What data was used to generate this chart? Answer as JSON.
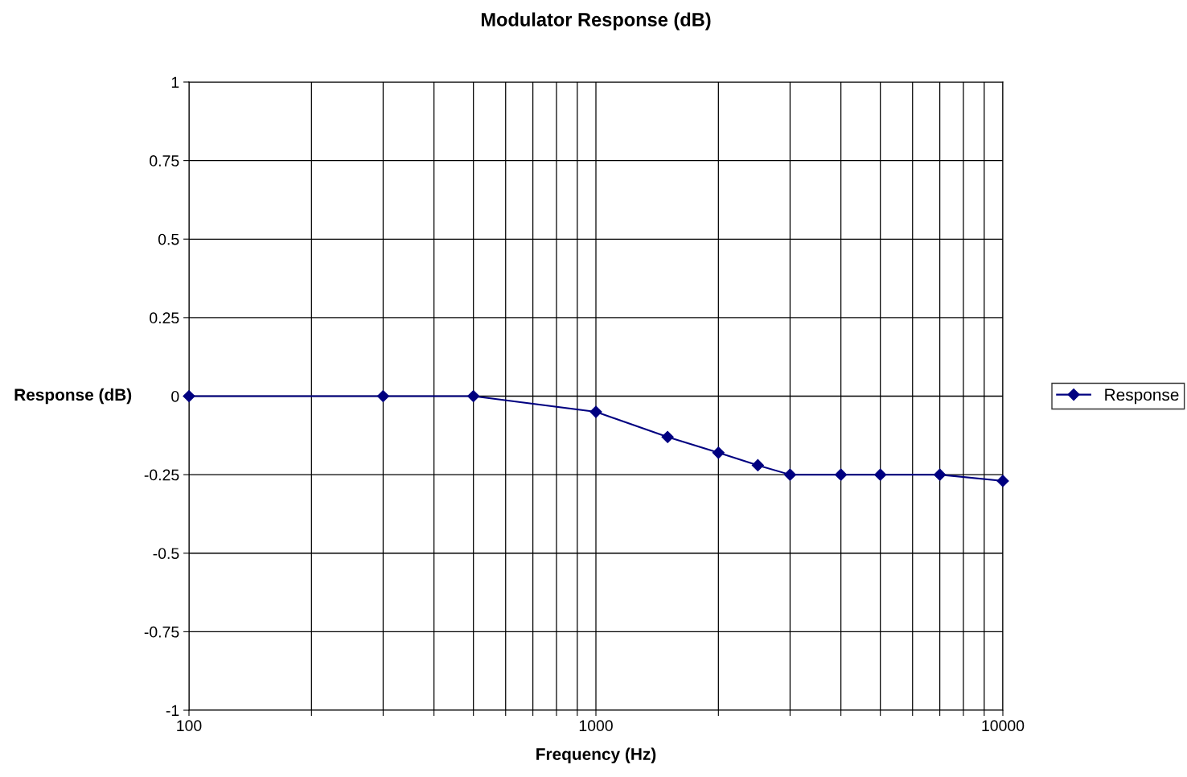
{
  "chart_data": {
    "type": "line",
    "title": "Modulator Response (dB)",
    "xlabel": "Frequency (Hz)",
    "ylabel": "Response (dB)",
    "log": "x",
    "x": [
      100,
      300,
      500,
      1000,
      1500,
      2000,
      2500,
      3000,
      4000,
      5000,
      7000,
      10000
    ],
    "series": [
      {
        "name": "Response",
        "color": "#000080",
        "values": [
          0,
          0,
          0,
          -0.05,
          -0.13,
          -0.18,
          -0.22,
          -0.25,
          -0.25,
          -0.25,
          -0.25,
          -0.27
        ]
      }
    ],
    "xlim": [
      100,
      10000
    ],
    "xticks": [
      100,
      {
        "value": 200,
        "label": null
      },
      {
        "value": 300,
        "label": null
      },
      {
        "value": 400,
        "label": null
      },
      {
        "value": 500,
        "label": null
      },
      {
        "value": 600,
        "label": null
      },
      {
        "value": 700,
        "label": null
      },
      {
        "value": 800,
        "label": null
      },
      {
        "value": 900,
        "label": null
      },
      1000,
      {
        "value": 2000,
        "label": null
      },
      {
        "value": 3000,
        "label": null
      },
      {
        "value": 4000,
        "label": null
      },
      {
        "value": 5000,
        "label": null
      },
      {
        "value": 6000,
        "label": null
      },
      {
        "value": 7000,
        "label": null
      },
      {
        "value": 8000,
        "label": null
      },
      {
        "value": 9000,
        "label": null
      },
      10000
    ],
    "ylim": [
      -1,
      1
    ],
    "yticks": [
      -1,
      -0.75,
      -0.5,
      -0.25,
      0,
      0.25,
      0.5,
      0.75,
      1
    ],
    "grid": true,
    "legend": "right",
    "marker": "diamond",
    "line_style": "solid"
  }
}
